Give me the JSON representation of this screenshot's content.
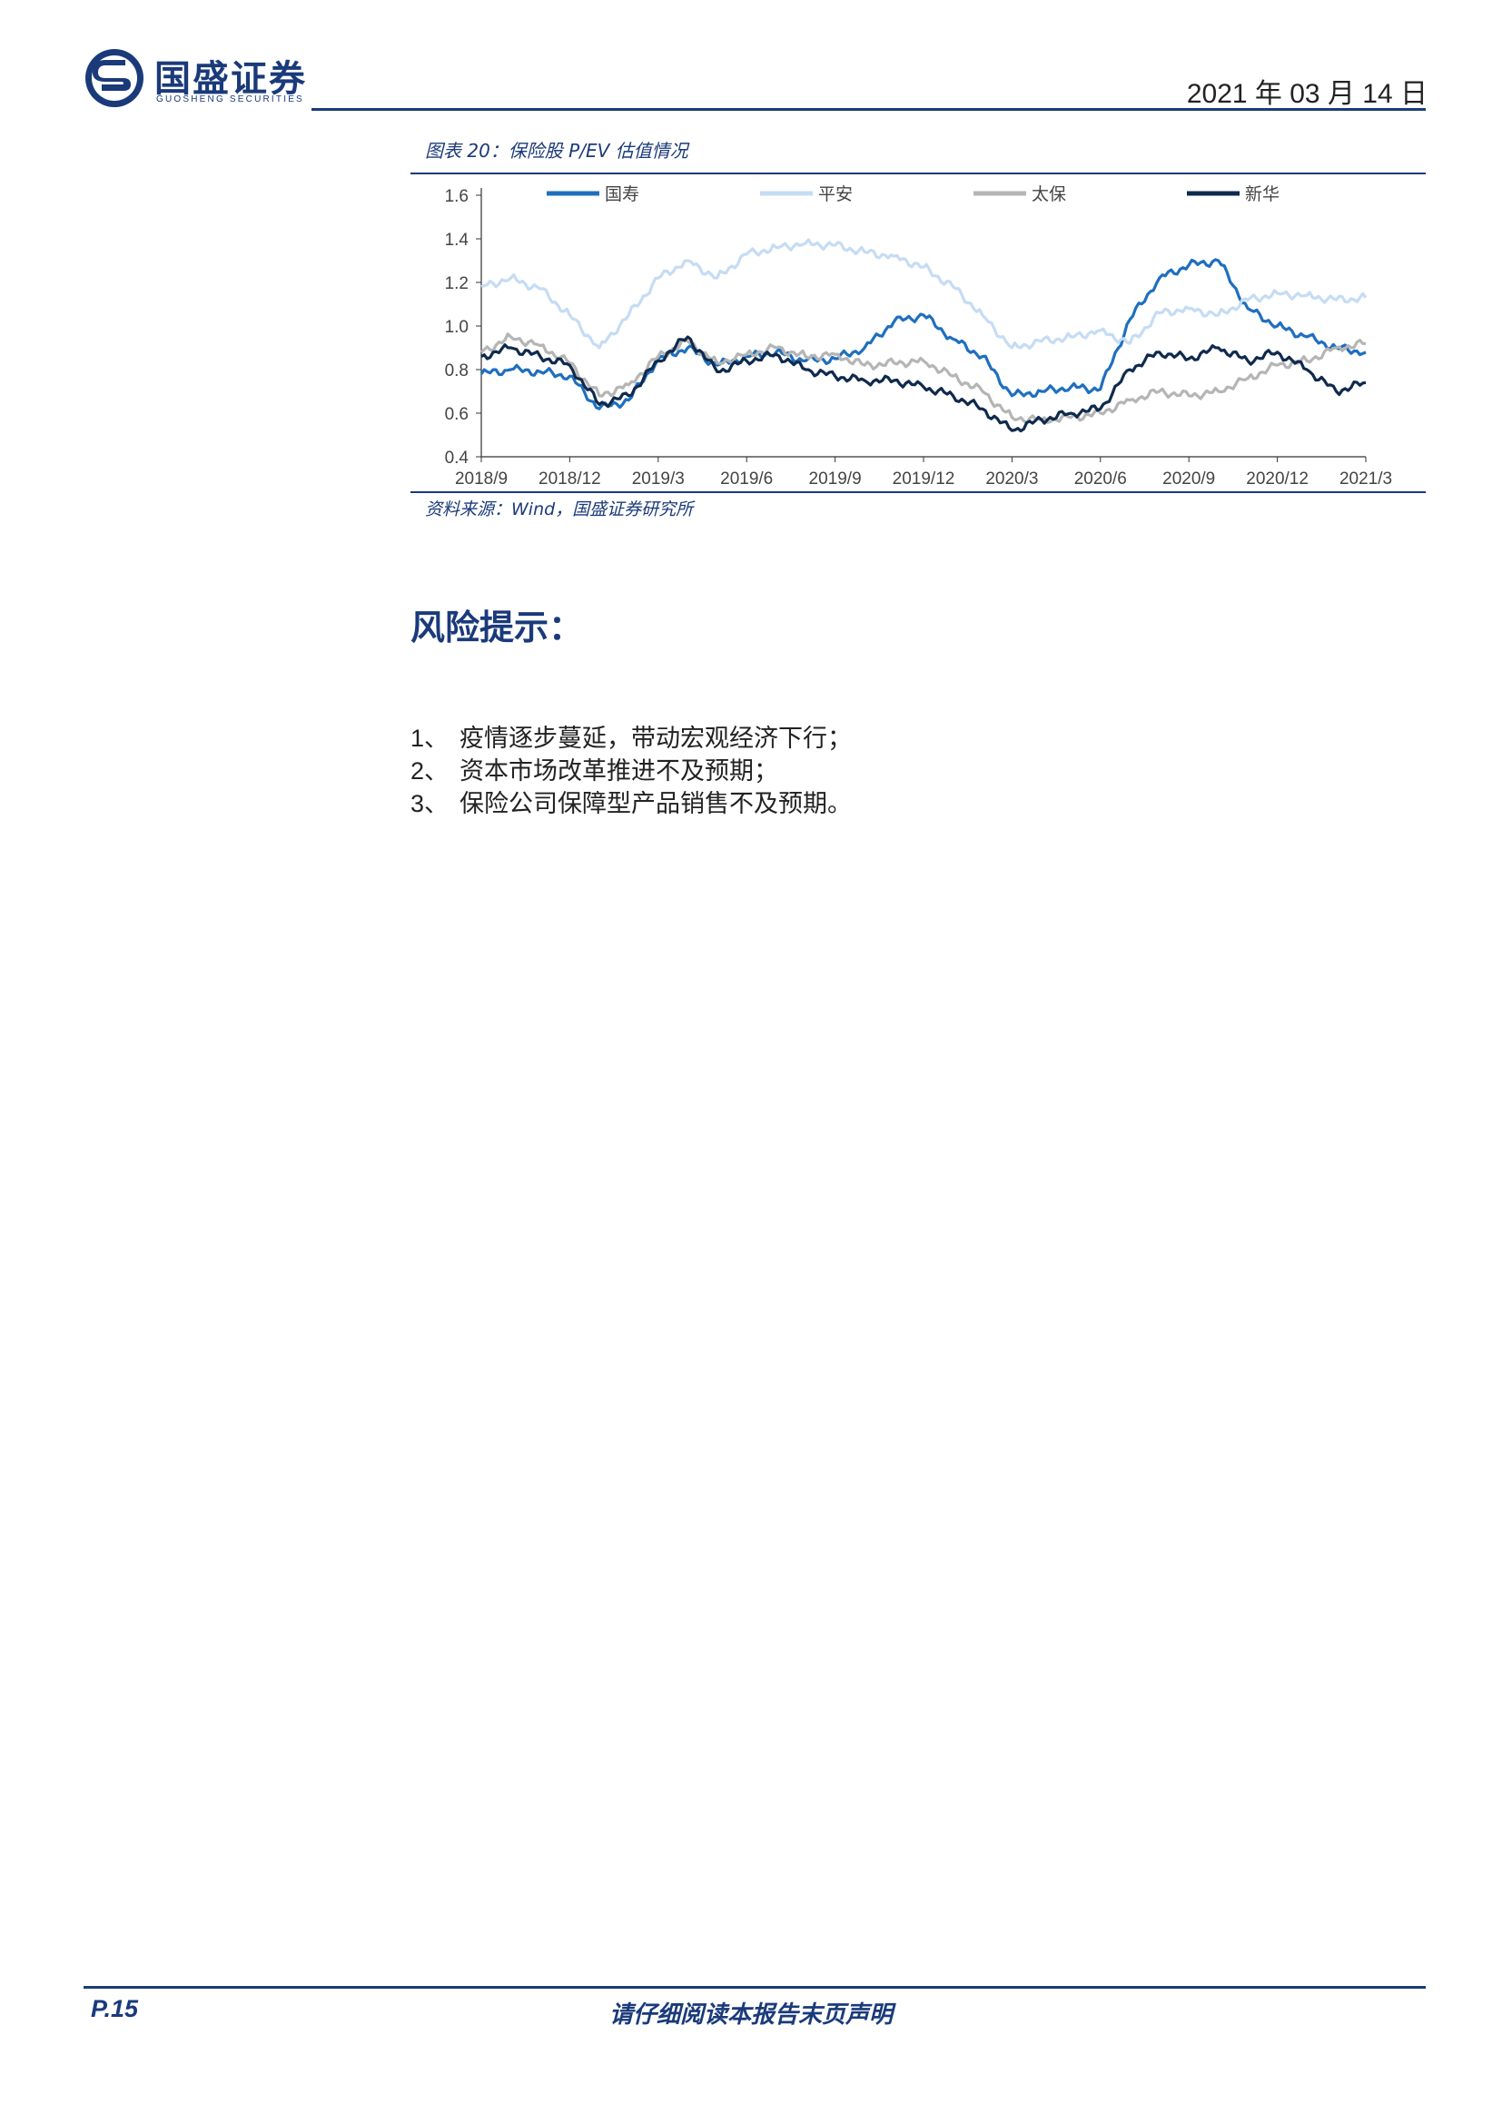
{
  "header": {
    "logo_cn": "国盛证券",
    "logo_en": "GUOSHENG SECURITIES",
    "date": "2021 年 03 月 14 日"
  },
  "figure": {
    "title": "图表 20：保险股 P/EV 估值情况",
    "source": "资料来源：Wind，国盛证券研究所"
  },
  "chart_data": {
    "type": "line",
    "title": "",
    "xlabel": "",
    "ylabel": "",
    "ylim": [
      0.4,
      1.6
    ],
    "y_ticks": [
      "1.6",
      "1.4",
      "1.2",
      "1.0",
      "0.8",
      "0.6",
      "0.4"
    ],
    "x_ticks": [
      "2018/9",
      "2018/12",
      "2019/3",
      "2019/6",
      "2019/9",
      "2019/12",
      "2020/3",
      "2020/6",
      "2020/9",
      "2020/12",
      "2021/3"
    ],
    "x_range": [
      "2018/9",
      "2021/3"
    ],
    "grid": false,
    "legend_position": "top",
    "x": [
      "2018/9",
      "2018/10",
      "2018/11",
      "2018/12",
      "2019/1",
      "2019/2",
      "2019/3",
      "2019/4",
      "2019/5",
      "2019/6",
      "2019/7",
      "2019/8",
      "2019/9",
      "2019/10",
      "2019/11",
      "2019/12",
      "2020/1",
      "2020/2",
      "2020/3",
      "2020/4",
      "2020/5",
      "2020/6",
      "2020/7",
      "2020/8",
      "2020/9",
      "2020/10",
      "2020/11",
      "2020/12",
      "2021/1",
      "2021/2",
      "2021/3"
    ],
    "series": [
      {
        "name": "国寿",
        "color": "#1f6fbf",
        "values": [
          0.78,
          0.8,
          0.79,
          0.77,
          0.62,
          0.66,
          0.85,
          0.9,
          0.82,
          0.86,
          0.88,
          0.84,
          0.85,
          0.9,
          1.02,
          1.05,
          0.94,
          0.86,
          0.68,
          0.7,
          0.72,
          0.71,
          1.03,
          1.22,
          1.28,
          1.3,
          1.08,
          1.0,
          0.95,
          0.9,
          0.88
        ]
      },
      {
        "name": "平安",
        "color": "#c5dcf3",
        "values": [
          1.18,
          1.22,
          1.17,
          1.05,
          0.9,
          1.05,
          1.22,
          1.3,
          1.22,
          1.33,
          1.36,
          1.38,
          1.37,
          1.34,
          1.32,
          1.27,
          1.18,
          1.05,
          0.9,
          0.93,
          0.95,
          0.98,
          0.92,
          1.06,
          1.08,
          1.05,
          1.12,
          1.15,
          1.14,
          1.12,
          1.13
        ]
      },
      {
        "name": "太保",
        "color": "#b5b5b5",
        "values": [
          0.88,
          0.95,
          0.91,
          0.83,
          0.68,
          0.73,
          0.86,
          0.93,
          0.83,
          0.87,
          0.9,
          0.86,
          0.87,
          0.82,
          0.83,
          0.84,
          0.77,
          0.7,
          0.58,
          0.57,
          0.58,
          0.6,
          0.66,
          0.7,
          0.68,
          0.7,
          0.76,
          0.82,
          0.84,
          0.9,
          0.92
        ]
      },
      {
        "name": "新华",
        "color": "#0f2a4d",
        "values": [
          0.86,
          0.9,
          0.86,
          0.82,
          0.64,
          0.68,
          0.84,
          0.95,
          0.79,
          0.84,
          0.87,
          0.8,
          0.77,
          0.75,
          0.75,
          0.72,
          0.68,
          0.62,
          0.52,
          0.57,
          0.6,
          0.62,
          0.8,
          0.88,
          0.85,
          0.9,
          0.84,
          0.88,
          0.8,
          0.7,
          0.74
        ]
      }
    ]
  },
  "risk": {
    "heading": "风险提示：",
    "items": [
      {
        "num": "1、",
        "text": "疫情逐步蔓延，带动宏观经济下行；"
      },
      {
        "num": "2、",
        "text": "资本市场改革推进不及预期；"
      },
      {
        "num": "3、",
        "text": "保险公司保障型产品销售不及预期。"
      }
    ]
  },
  "footer": {
    "page": "P.15",
    "note": "请仔细阅读本报告末页声明"
  }
}
